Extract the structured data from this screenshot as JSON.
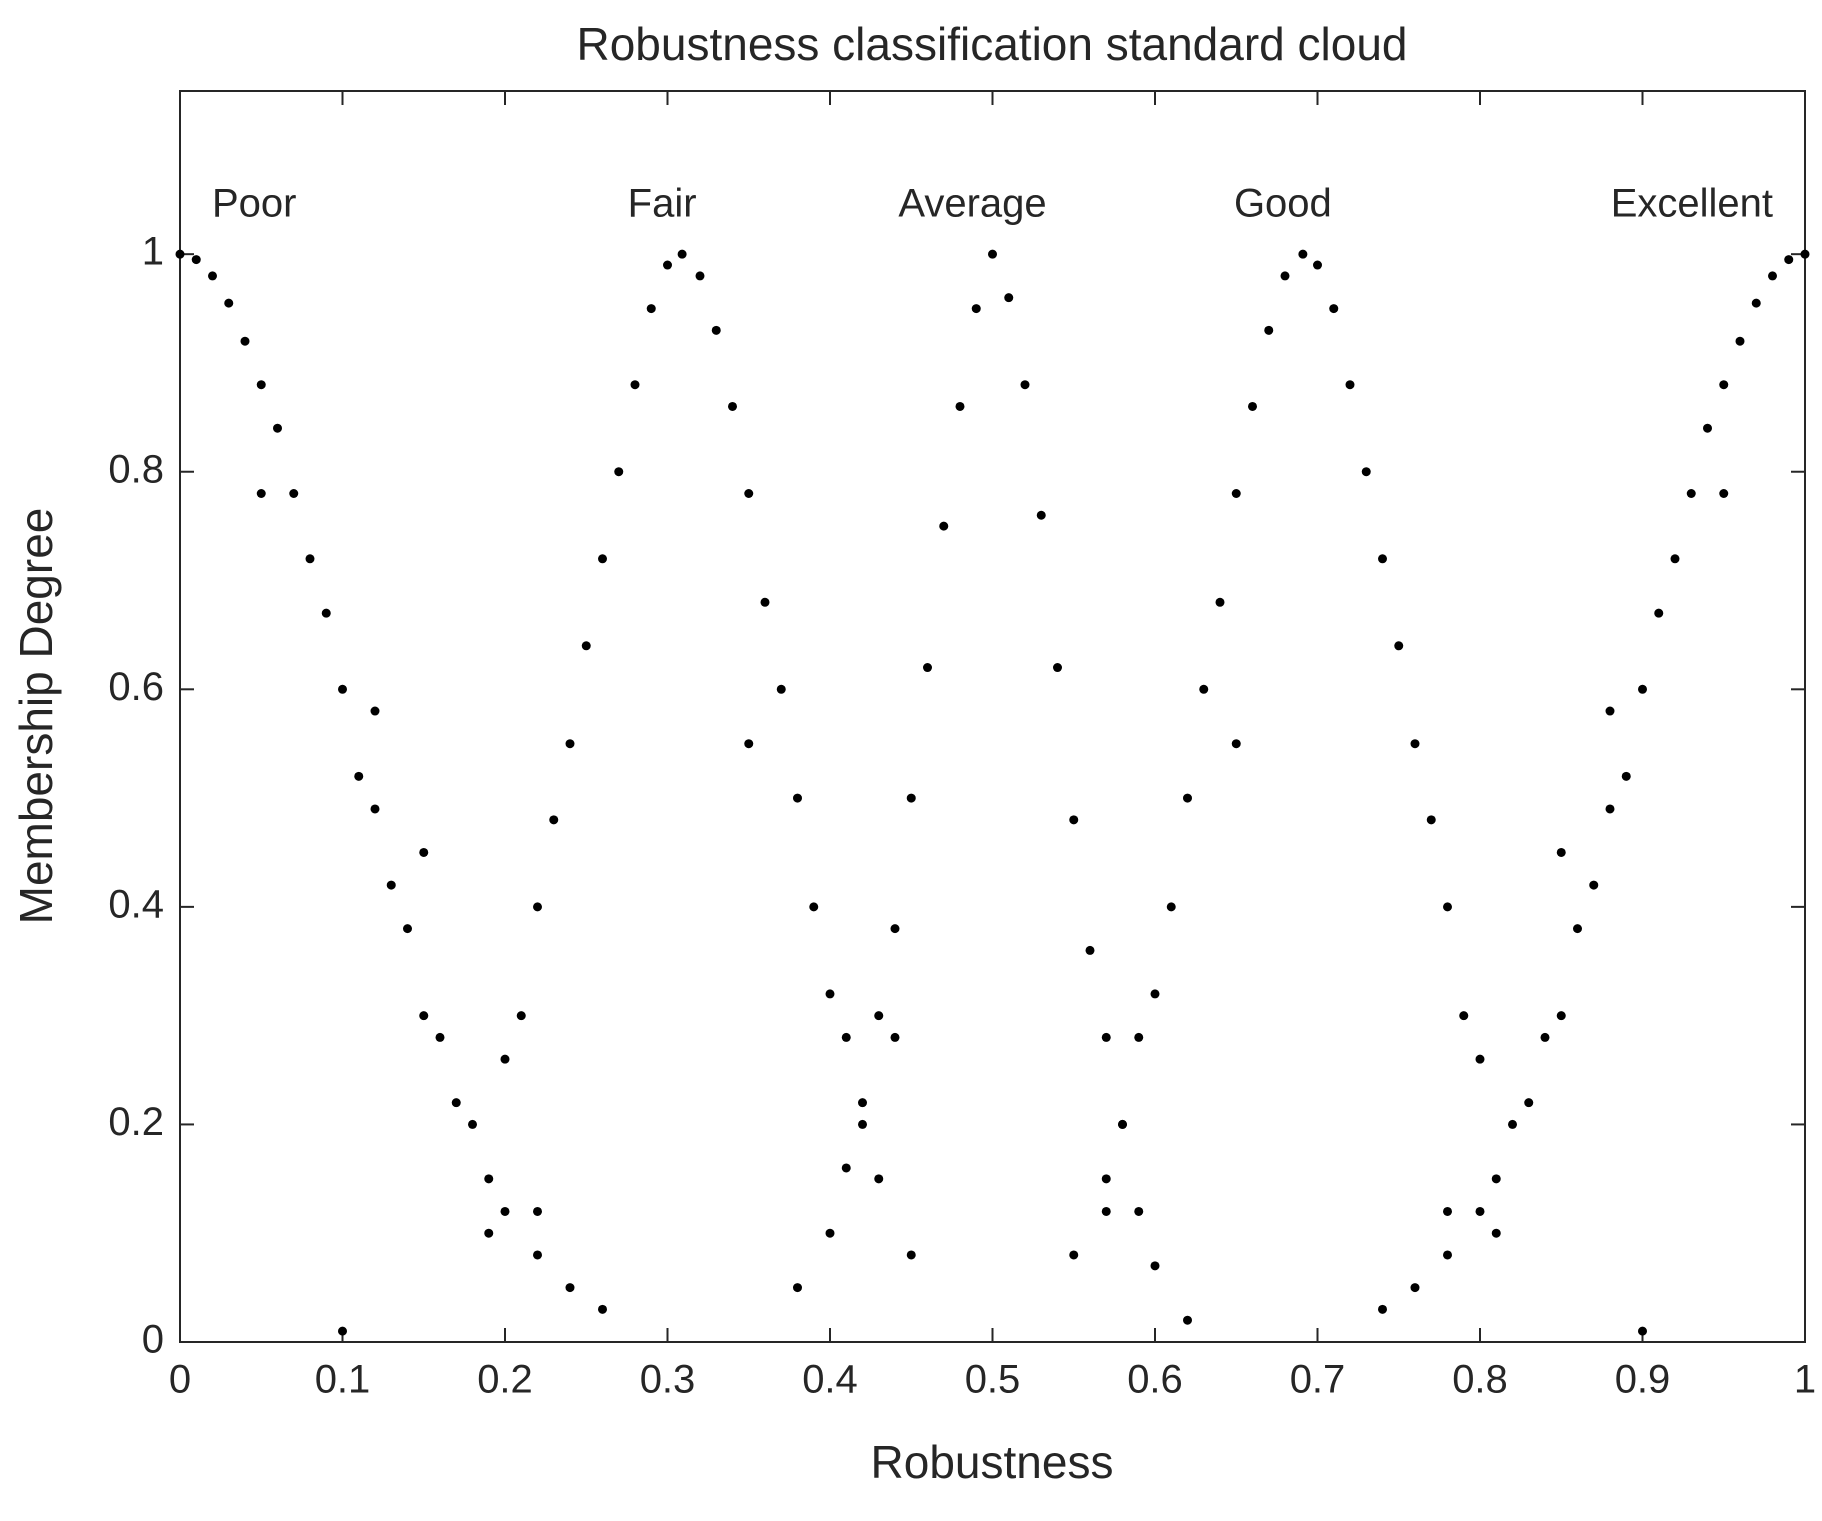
{
  "chart_data": {
    "type": "scatter",
    "title": "Robustness classification standard cloud",
    "x_label": "Robustness",
    "y_label": "Membership Degree",
    "xlim": [
      0,
      1
    ],
    "ylim": [
      0,
      1.15
    ],
    "xticks": [
      0,
      0.1,
      0.2,
      0.3,
      0.4,
      0.5,
      0.6,
      0.7,
      0.8,
      0.9,
      1
    ],
    "yticks": [
      0,
      0.2,
      0.4,
      0.6,
      0.8,
      1
    ],
    "series": [
      {
        "name": "Poor",
        "color": "#000000",
        "x": [
          0,
          0.01,
          0.02,
          0.03,
          0.04,
          0.05,
          0.06,
          0.07,
          0.08,
          0.09,
          0.1,
          0.11,
          0.12,
          0.13,
          0.14,
          0.15,
          0.16,
          0.17,
          0.18,
          0.19,
          0.2,
          0.22,
          0.24,
          0.26,
          0.1,
          0.05,
          0.12,
          0.15
        ],
        "values": [
          1,
          0.995,
          0.98,
          0.955,
          0.92,
          0.88,
          0.84,
          0.78,
          0.72,
          0.67,
          0.6,
          0.52,
          0.49,
          0.42,
          0.38,
          0.3,
          0.28,
          0.22,
          0.2,
          0.15,
          0.12,
          0.08,
          0.05,
          0.03,
          0.01,
          0.78,
          0.58,
          0.45
        ]
      },
      {
        "name": "Fair",
        "color": "#000000",
        "x": [
          0.19,
          0.2,
          0.21,
          0.22,
          0.23,
          0.24,
          0.25,
          0.26,
          0.27,
          0.28,
          0.29,
          0.3,
          0.309,
          0.32,
          0.33,
          0.34,
          0.35,
          0.36,
          0.37,
          0.38,
          0.39,
          0.4,
          0.41,
          0.42,
          0.43,
          0.45,
          0.22,
          0.35
        ],
        "values": [
          0.1,
          0.26,
          0.3,
          0.4,
          0.48,
          0.55,
          0.64,
          0.72,
          0.8,
          0.88,
          0.95,
          0.99,
          1,
          0.98,
          0.93,
          0.86,
          0.78,
          0.68,
          0.6,
          0.5,
          0.4,
          0.32,
          0.28,
          0.2,
          0.15,
          0.08,
          0.12,
          0.55
        ]
      },
      {
        "name": "Average",
        "color": "#000000",
        "x": [
          0.38,
          0.4,
          0.41,
          0.42,
          0.43,
          0.44,
          0.45,
          0.46,
          0.47,
          0.48,
          0.49,
          0.5,
          0.51,
          0.52,
          0.53,
          0.54,
          0.55,
          0.56,
          0.57,
          0.58,
          0.59,
          0.6,
          0.62,
          0.44,
          0.57
        ],
        "values": [
          0.05,
          0.1,
          0.16,
          0.22,
          0.3,
          0.38,
          0.5,
          0.62,
          0.75,
          0.86,
          0.95,
          1,
          0.96,
          0.88,
          0.76,
          0.62,
          0.48,
          0.36,
          0.28,
          0.2,
          0.12,
          0.07,
          0.02,
          0.28,
          0.12
        ]
      },
      {
        "name": "Good",
        "color": "#000000",
        "x": [
          0.81,
          0.8,
          0.79,
          0.78,
          0.77,
          0.76,
          0.75,
          0.74,
          0.73,
          0.72,
          0.71,
          0.7,
          0.691,
          0.68,
          0.67,
          0.66,
          0.65,
          0.64,
          0.63,
          0.62,
          0.61,
          0.6,
          0.59,
          0.58,
          0.57,
          0.55,
          0.78,
          0.65
        ],
        "values": [
          0.1,
          0.26,
          0.3,
          0.4,
          0.48,
          0.55,
          0.64,
          0.72,
          0.8,
          0.88,
          0.95,
          0.99,
          1,
          0.98,
          0.93,
          0.86,
          0.78,
          0.68,
          0.6,
          0.5,
          0.4,
          0.32,
          0.28,
          0.2,
          0.15,
          0.08,
          0.12,
          0.55
        ]
      },
      {
        "name": "Excellent",
        "color": "#000000",
        "x": [
          1,
          0.99,
          0.98,
          0.97,
          0.96,
          0.95,
          0.94,
          0.93,
          0.92,
          0.91,
          0.9,
          0.89,
          0.88,
          0.87,
          0.86,
          0.85,
          0.84,
          0.83,
          0.82,
          0.81,
          0.8,
          0.78,
          0.76,
          0.74,
          0.9,
          0.95,
          0.88,
          0.85
        ],
        "values": [
          1,
          0.995,
          0.98,
          0.955,
          0.92,
          0.88,
          0.84,
          0.78,
          0.72,
          0.67,
          0.6,
          0.52,
          0.49,
          0.42,
          0.38,
          0.3,
          0.28,
          0.22,
          0.2,
          0.15,
          0.12,
          0.08,
          0.05,
          0.03,
          0.01,
          0.78,
          0.58,
          0.45
        ]
      }
    ]
  }
}
